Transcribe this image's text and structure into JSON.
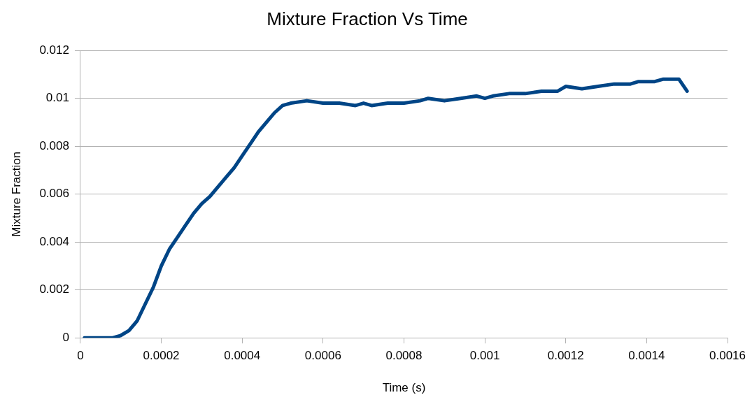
{
  "chart_data": {
    "type": "line",
    "title": "Mixture Fraction Vs Time",
    "xlabel": "Time (s)",
    "ylabel": "Mixture Fraction",
    "xlim": [
      0,
      0.0016
    ],
    "xticks": [
      0,
      0.0002,
      0.0004,
      0.0006,
      0.0008,
      0.001,
      0.0012,
      0.0014,
      0.0016
    ],
    "ylim": [
      0,
      0.012
    ],
    "yticks": [
      0,
      0.002,
      0.004,
      0.006,
      0.008,
      0.01,
      0.012
    ],
    "grid": "y",
    "legend": false,
    "marker": "none",
    "line_style": "solid",
    "series": [
      {
        "color": "#004586",
        "x": [
          1e-05,
          8e-05,
          0.0001,
          0.00012,
          0.00014,
          0.00016,
          0.00018,
          0.0002,
          0.00022,
          0.00024,
          0.00026,
          0.00028,
          0.0003,
          0.00032,
          0.00034,
          0.00036,
          0.00038,
          0.0004,
          0.00042,
          0.00044,
          0.00046,
          0.00048,
          0.0005,
          0.00052,
          0.00056,
          0.0006,
          0.00064,
          0.00068,
          0.0007,
          0.00072,
          0.00076,
          0.0008,
          0.00084,
          0.00086,
          0.0009,
          0.00094,
          0.00098,
          0.001,
          0.00102,
          0.00106,
          0.0011,
          0.00114,
          0.00118,
          0.0012,
          0.00124,
          0.00128,
          0.00132,
          0.00136,
          0.00138,
          0.00142,
          0.00144,
          0.00148,
          0.0015
        ],
        "values": [
          0,
          0,
          0.0001,
          0.0003,
          0.0007,
          0.0014,
          0.0021,
          0.003,
          0.0037,
          0.0042,
          0.0047,
          0.0052,
          0.0056,
          0.0059,
          0.0063,
          0.0067,
          0.0071,
          0.0076,
          0.0081,
          0.0086,
          0.009,
          0.0094,
          0.0097,
          0.0098,
          0.0099,
          0.0098,
          0.0098,
          0.0097,
          0.0098,
          0.0097,
          0.0098,
          0.0098,
          0.0099,
          0.01,
          0.0099,
          0.01,
          0.0101,
          0.01,
          0.0101,
          0.0102,
          0.0102,
          0.0103,
          0.0103,
          0.0105,
          0.0104,
          0.0105,
          0.0106,
          0.0106,
          0.0107,
          0.0107,
          0.0108,
          0.0108,
          0.0103
        ]
      }
    ]
  }
}
